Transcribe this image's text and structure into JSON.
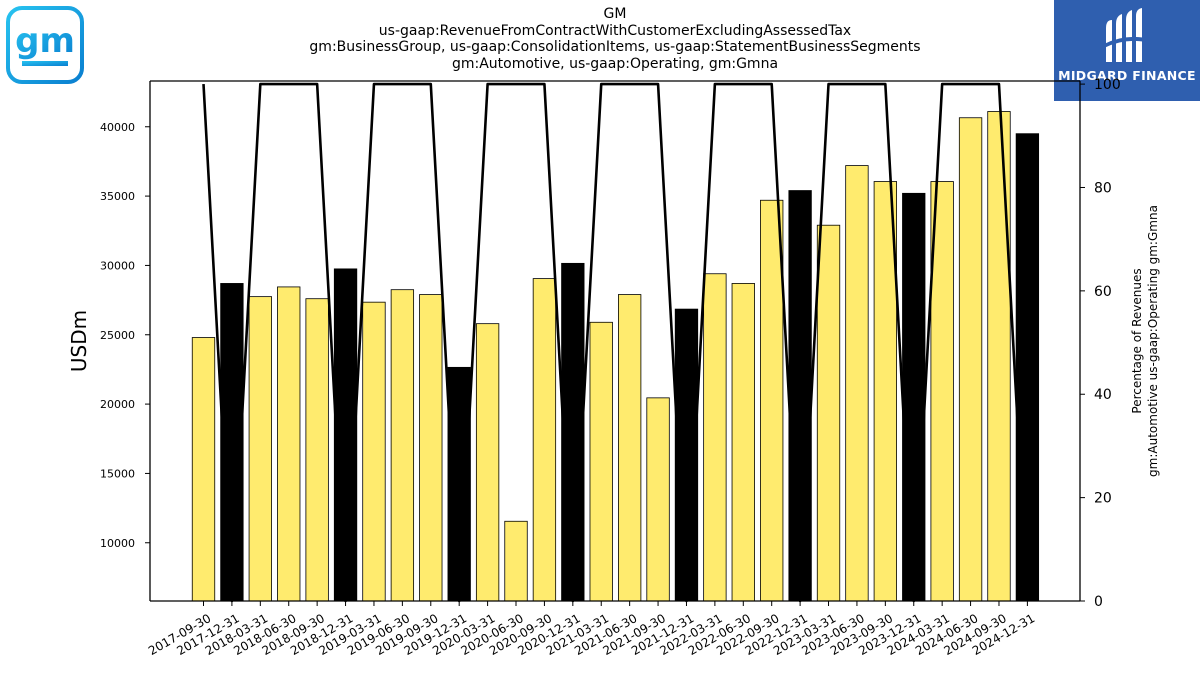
{
  "title_lines": [
    "GM",
    "us-gaap:RevenueFromContractWithCustomerExcludingAssessedTax",
    "gm:BusinessGroup, us-gaap:ConsolidationItems, us-gaap:StatementBusinessSegments",
    "gm:Automotive, us-gaap:Operating, gm:Gmna"
  ],
  "logos": {
    "left": {
      "text": "gm",
      "icon": "gm-logo"
    },
    "right": {
      "text": "MIDGARD FINANCE",
      "icon": "midgard-finance-logo"
    }
  },
  "colors": {
    "bar_default": "#ffeb6e",
    "bar_q4": "#000000",
    "line": "#000000",
    "gm_blue": "#1aa7e0",
    "midgard_blue": "#2f5faf"
  },
  "chart_data": {
    "type": "bar",
    "ylabel": "USDm",
    "y2label_lines": [
      "Percentage of Revenues",
      "gm:Automotive us-gaap:Operating gm:Gmna"
    ],
    "ylim": [
      5800,
      43300
    ],
    "y_ticks": [
      10000,
      15000,
      20000,
      25000,
      30000,
      35000,
      40000
    ],
    "y2lim": [
      0,
      100.6
    ],
    "y2_ticks": [
      0,
      20,
      40,
      60,
      80,
      100
    ],
    "categories": [
      "2017-09-30",
      "2017-12-31",
      "2018-03-31",
      "2018-06-30",
      "2018-09-30",
      "2018-12-31",
      "2019-03-31",
      "2019-06-30",
      "2019-09-30",
      "2019-12-31",
      "2020-03-31",
      "2020-06-30",
      "2020-09-30",
      "2020-12-31",
      "2021-03-31",
      "2021-06-30",
      "2021-09-30",
      "2021-12-31",
      "2022-03-31",
      "2022-06-30",
      "2022-09-30",
      "2022-12-31",
      "2023-03-31",
      "2023-06-30",
      "2023-09-30",
      "2023-12-31",
      "2024-03-31",
      "2024-06-30",
      "2024-09-30",
      "2024-12-31"
    ],
    "values": [
      24800,
      28700,
      27750,
      28450,
      27600,
      29750,
      27350,
      28250,
      27900,
      22650,
      25800,
      11550,
      29050,
      30150,
      25900,
      27900,
      20450,
      26850,
      29400,
      28700,
      34700,
      35400,
      32900,
      37200,
      36050,
      35200,
      36050,
      40650,
      41100,
      39500
    ],
    "highlight_quarter_end": "12-31",
    "series": [
      {
        "name": "Percentage of Revenues",
        "axis": "right",
        "type": "line",
        "values": [
          100,
          0,
          100,
          100,
          100,
          0,
          100,
          100,
          100,
          0,
          100,
          100,
          100,
          0,
          100,
          100,
          100,
          0,
          100,
          100,
          100,
          0,
          100,
          100,
          100,
          0,
          100,
          100,
          100,
          0
        ]
      }
    ],
    "grid": false,
    "legend": "none"
  }
}
